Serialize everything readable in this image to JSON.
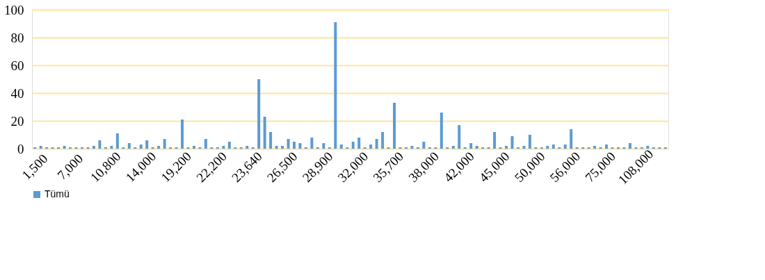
{
  "chart_data": {
    "type": "bar",
    "categories": [
      "1,500",
      null,
      null,
      null,
      null,
      null,
      "7,000",
      null,
      null,
      null,
      null,
      null,
      "10,800",
      null,
      null,
      null,
      null,
      null,
      "14,000",
      null,
      null,
      null,
      null,
      null,
      "19,200",
      null,
      null,
      null,
      null,
      null,
      "22,200",
      null,
      null,
      null,
      null,
      null,
      "23,640",
      null,
      null,
      null,
      null,
      null,
      "26,500",
      null,
      null,
      null,
      null,
      null,
      "28,900",
      null,
      null,
      null,
      null,
      null,
      "32,000",
      null,
      null,
      null,
      null,
      null,
      "35,700",
      null,
      null,
      null,
      null,
      null,
      "38,000",
      null,
      null,
      null,
      null,
      null,
      "42,000",
      null,
      null,
      null,
      null,
      null,
      "45,000",
      null,
      null,
      null,
      null,
      null,
      "50,000",
      null,
      null,
      null,
      null,
      null,
      "56,000",
      null,
      null,
      null,
      null,
      null,
      "75,000",
      null,
      null,
      null,
      null,
      null,
      "108,000",
      null,
      null,
      null,
      null,
      null
    ],
    "series": [
      {
        "name": "Tümü",
        "color": "#5b9bd5",
        "values": [
          1,
          2,
          1,
          1,
          1,
          2,
          1,
          1,
          1,
          1,
          2,
          6,
          1,
          2,
          11,
          1,
          4,
          1,
          3,
          6,
          1,
          2,
          7,
          1,
          1,
          21,
          1,
          2,
          1,
          7,
          1,
          1,
          2,
          5,
          1,
          1,
          2,
          1,
          50,
          23,
          12,
          2,
          2,
          7,
          5,
          4,
          1,
          8,
          1,
          4,
          1,
          91,
          3,
          1,
          5,
          8,
          1,
          3,
          7,
          12,
          1,
          33,
          1,
          1,
          2,
          1,
          5,
          1,
          1,
          26,
          1,
          2,
          17,
          1,
          4,
          2,
          1,
          1,
          12,
          1,
          2,
          9,
          1,
          2,
          10,
          1,
          1,
          2,
          3,
          1,
          3,
          14,
          1,
          1,
          1,
          2,
          1,
          3,
          1,
          1,
          1,
          4,
          1,
          1,
          2,
          1,
          1,
          1
        ]
      }
    ],
    "ylim": [
      0,
      100
    ],
    "yticks": [
      0,
      20,
      40,
      60,
      80,
      100
    ],
    "grid": "y",
    "legend": "bottom"
  }
}
